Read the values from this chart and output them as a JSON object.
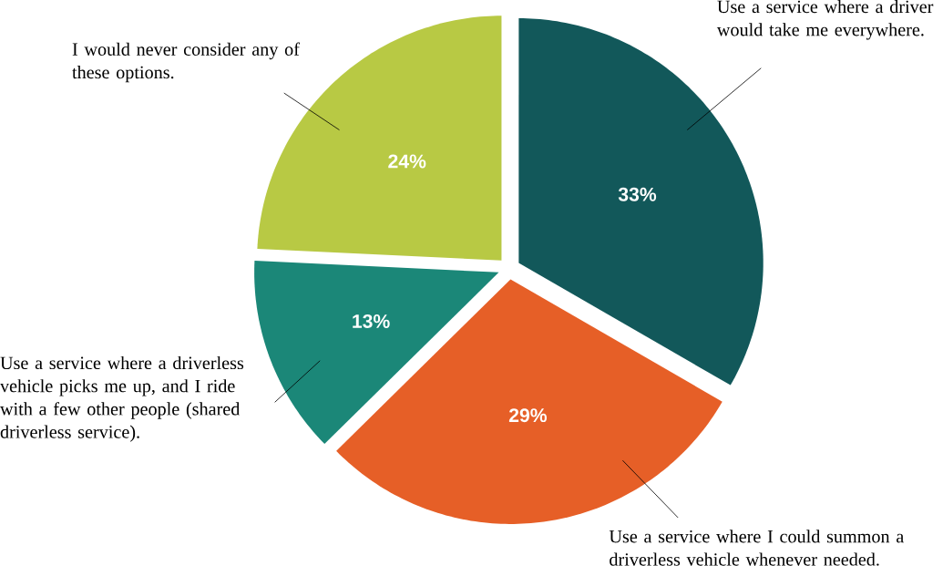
{
  "chart_data": {
    "type": "pie",
    "categories": [
      "Use a service where a driver would take me everywhere.",
      "Use a service where I could summon a driverless vehicle whenever needed.",
      "Use a service where a driverless vehicle picks me up, and I ride with a few other people (shared driverless service).",
      "I would never consider any of these options."
    ],
    "values": [
      33,
      29,
      13,
      24
    ],
    "colors": [
      "#12585a",
      "#e65f27",
      "#1b8778",
      "#b8c944"
    ],
    "value_labels": [
      "33%",
      "29%",
      "13%",
      "24%"
    ]
  }
}
